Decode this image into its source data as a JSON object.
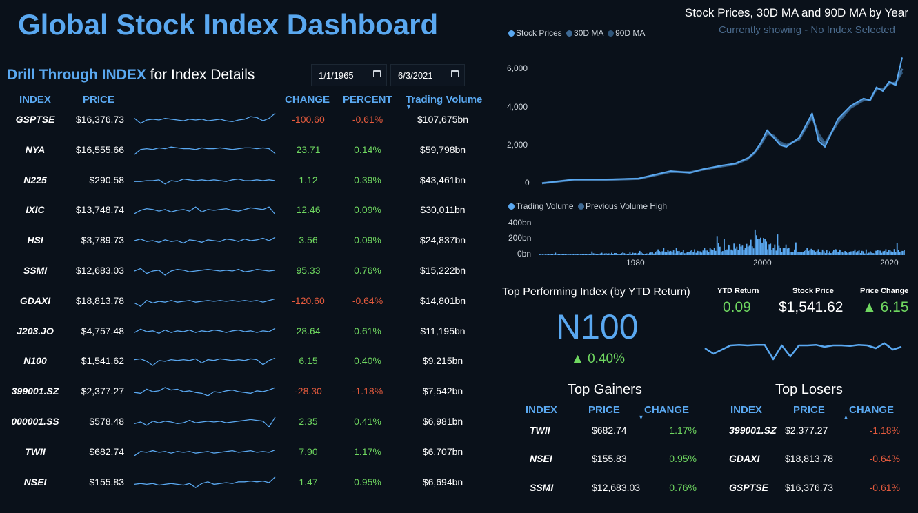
{
  "page": {
    "title": "Global Stock Index Dashboard"
  },
  "drill": {
    "highlight": "Drill Through INDEX",
    "rest": " for Index Details"
  },
  "dates": {
    "start": "1/1/1965",
    "end": "6/3/2021"
  },
  "table": {
    "headers": {
      "index": "INDEX",
      "price": "PRICE",
      "change": "CHANGE",
      "percent": "PERCENT",
      "volume": "Trading Volume"
    },
    "rows": [
      {
        "index": "GSPTSE",
        "price": "$16,376.73",
        "change": "-100.60",
        "percent": "-0.61%",
        "volume": "$107,675bn",
        "dir": "neg",
        "spark": [
          0.4,
          0.7,
          0.5,
          0.45,
          0.5,
          0.4,
          0.45,
          0.5,
          0.55,
          0.45,
          0.5,
          0.45,
          0.55,
          0.5,
          0.45,
          0.55,
          0.6,
          0.5,
          0.45,
          0.3,
          0.35,
          0.55,
          0.4,
          0.1
        ]
      },
      {
        "index": "NYA",
        "price": "$16,555.66",
        "change": "23.71",
        "percent": "0.14%",
        "volume": "$59,798bn",
        "dir": "pos",
        "spark": [
          0.75,
          0.45,
          0.4,
          0.45,
          0.35,
          0.4,
          0.3,
          0.35,
          0.4,
          0.4,
          0.45,
          0.35,
          0.4,
          0.4,
          0.35,
          0.4,
          0.45,
          0.4,
          0.35,
          0.35,
          0.4,
          0.35,
          0.4,
          0.7
        ]
      },
      {
        "index": "N225",
        "price": "$290.58",
        "change": "1.12",
        "percent": "0.39%",
        "volume": "$43,461bn",
        "dir": "pos",
        "spark": [
          0.55,
          0.55,
          0.5,
          0.5,
          0.45,
          0.7,
          0.5,
          0.55,
          0.4,
          0.45,
          0.5,
          0.45,
          0.5,
          0.45,
          0.5,
          0.55,
          0.45,
          0.4,
          0.5,
          0.5,
          0.45,
          0.5,
          0.45,
          0.5
        ]
      },
      {
        "index": "IXIC",
        "price": "$13,748.74",
        "change": "12.46",
        "percent": "0.09%",
        "volume": "$30,011bn",
        "dir": "pos",
        "spark": [
          0.7,
          0.5,
          0.4,
          0.45,
          0.55,
          0.45,
          0.6,
          0.5,
          0.45,
          0.55,
          0.3,
          0.6,
          0.45,
          0.5,
          0.45,
          0.4,
          0.5,
          0.55,
          0.45,
          0.35,
          0.4,
          0.45,
          0.3,
          0.75
        ]
      },
      {
        "index": "HSI",
        "price": "$3,789.73",
        "change": "3.56",
        "percent": "0.09%",
        "volume": "$24,837bn",
        "dir": "pos",
        "spark": [
          0.5,
          0.4,
          0.55,
          0.5,
          0.6,
          0.45,
          0.55,
          0.5,
          0.65,
          0.45,
          0.5,
          0.6,
          0.45,
          0.5,
          0.55,
          0.4,
          0.45,
          0.55,
          0.4,
          0.5,
          0.45,
          0.35,
          0.5,
          0.3
        ]
      },
      {
        "index": "SSMI",
        "price": "$12,683.03",
        "change": "95.33",
        "percent": "0.76%",
        "volume": "$15,222bn",
        "dir": "pos",
        "spark": [
          0.5,
          0.35,
          0.65,
          0.5,
          0.45,
          0.75,
          0.5,
          0.4,
          0.45,
          0.55,
          0.5,
          0.45,
          0.4,
          0.45,
          0.5,
          0.45,
          0.5,
          0.4,
          0.55,
          0.5,
          0.4,
          0.45,
          0.5,
          0.45
        ]
      },
      {
        "index": "GDAXI",
        "price": "$18,813.78",
        "change": "-120.60",
        "percent": "-0.64%",
        "volume": "$14,801bn",
        "dir": "neg",
        "spark": [
          0.6,
          0.8,
          0.45,
          0.6,
          0.5,
          0.55,
          0.45,
          0.55,
          0.5,
          0.45,
          0.55,
          0.5,
          0.45,
          0.5,
          0.45,
          0.5,
          0.45,
          0.5,
          0.45,
          0.5,
          0.45,
          0.55,
          0.45,
          0.35
        ]
      },
      {
        "index": "J203.JO",
        "price": "$4,757.48",
        "change": "28.64",
        "percent": "0.61%",
        "volume": "$11,195bn",
        "dir": "pos",
        "spark": [
          0.55,
          0.35,
          0.5,
          0.45,
          0.6,
          0.4,
          0.55,
          0.45,
          0.5,
          0.4,
          0.55,
          0.45,
          0.5,
          0.4,
          0.45,
          0.55,
          0.45,
          0.4,
          0.5,
          0.45,
          0.55,
          0.45,
          0.5,
          0.3
        ]
      },
      {
        "index": "N100",
        "price": "$1,541.62",
        "change": "6.15",
        "percent": "0.40%",
        "volume": "$9,215bn",
        "dir": "pos",
        "spark": [
          0.4,
          0.35,
          0.5,
          0.75,
          0.45,
          0.5,
          0.4,
          0.45,
          0.4,
          0.45,
          0.35,
          0.6,
          0.4,
          0.45,
          0.35,
          0.4,
          0.45,
          0.4,
          0.45,
          0.35,
          0.4,
          0.7,
          0.45,
          0.3
        ]
      },
      {
        "index": "399001.SZ",
        "price": "$2,377.27",
        "change": "-28.30",
        "percent": "-1.18%",
        "volume": "$7,542bn",
        "dir": "neg",
        "spark": [
          0.55,
          0.6,
          0.35,
          0.5,
          0.45,
          0.25,
          0.4,
          0.35,
          0.5,
          0.45,
          0.55,
          0.6,
          0.75,
          0.5,
          0.55,
          0.45,
          0.4,
          0.5,
          0.55,
          0.6,
          0.45,
          0.5,
          0.4,
          0.25
        ]
      },
      {
        "index": "000001.SS",
        "price": "$578.48",
        "change": "2.35",
        "percent": "0.41%",
        "volume": "$6,981bn",
        "dir": "pos",
        "spark": [
          0.6,
          0.5,
          0.7,
          0.45,
          0.55,
          0.45,
          0.5,
          0.6,
          0.55,
          0.4,
          0.55,
          0.5,
          0.45,
          0.5,
          0.45,
          0.55,
          0.5,
          0.45,
          0.4,
          0.35,
          0.4,
          0.45,
          0.8,
          0.2
        ]
      },
      {
        "index": "TWII",
        "price": "$682.74",
        "change": "7.90",
        "percent": "1.17%",
        "volume": "$6,707bn",
        "dir": "pos",
        "spark": [
          0.7,
          0.45,
          0.5,
          0.4,
          0.5,
          0.45,
          0.55,
          0.45,
          0.5,
          0.45,
          0.55,
          0.5,
          0.45,
          0.55,
          0.5,
          0.45,
          0.4,
          0.5,
          0.45,
          0.4,
          0.5,
          0.45,
          0.5,
          0.35
        ]
      },
      {
        "index": "NSEI",
        "price": "$155.83",
        "change": "1.47",
        "percent": "0.95%",
        "volume": "$6,694bn",
        "dir": "pos",
        "spark": [
          0.6,
          0.55,
          0.6,
          0.55,
          0.65,
          0.6,
          0.55,
          0.6,
          0.65,
          0.55,
          0.8,
          0.55,
          0.45,
          0.6,
          0.55,
          0.5,
          0.55,
          0.45,
          0.45,
          0.4,
          0.45,
          0.4,
          0.5,
          0.15
        ]
      }
    ]
  },
  "price_chart": {
    "title": "Stock Prices, 30D MA and 90D MA by Year",
    "subtitle": "Currently showing - No Index Selected",
    "legend": [
      "Stock Prices",
      "30D MA",
      "90D MA"
    ],
    "colors": [
      "#5aa8f0",
      "#3e6a95",
      "#2f5579"
    ],
    "y_ticks": [
      "6,000",
      "4,000",
      "2,000",
      "0"
    ]
  },
  "volume_chart": {
    "legend": [
      "Trading Volume",
      "Previous Volume High"
    ],
    "colors": [
      "#5aa8f0",
      "#3e6a95"
    ],
    "y_ticks": [
      "400bn",
      "200bn",
      "0bn"
    ],
    "x_ticks": [
      "1980",
      "2000",
      "2020"
    ]
  },
  "chart_data": [
    {
      "type": "line",
      "title": "Stock Prices, 30D MA and 90D MA by Year",
      "xlabel": "",
      "ylabel": "",
      "ylim": [
        0,
        7000
      ],
      "xlim": [
        1965,
        2021
      ],
      "x": [
        1965,
        1970,
        1975,
        1980,
        1985,
        1988,
        1990,
        1993,
        1995,
        1997,
        1998,
        1999,
        2000,
        2001,
        2002,
        2003,
        2005,
        2007,
        2008,
        2009,
        2011,
        2013,
        2015,
        2016,
        2017,
        2018,
        2019,
        2020,
        2021
      ],
      "series": [
        {
          "name": "Stock Prices",
          "values": [
            50,
            250,
            250,
            300,
            700,
            600,
            800,
            1000,
            1100,
            1400,
            1700,
            2200,
            2900,
            2500,
            2100,
            2000,
            2500,
            3800,
            2300,
            2000,
            3500,
            4200,
            4600,
            4500,
            5200,
            5000,
            5500,
            5300,
            6800
          ]
        },
        {
          "name": "30D MA",
          "values": [
            50,
            240,
            240,
            290,
            680,
            620,
            790,
            980,
            1080,
            1380,
            1680,
            2150,
            2800,
            2550,
            2150,
            2050,
            2450,
            3700,
            2500,
            2100,
            3400,
            4150,
            4550,
            4500,
            5150,
            5050,
            5450,
            5400,
            6200
          ]
        },
        {
          "name": "90D MA",
          "values": [
            50,
            230,
            230,
            280,
            650,
            640,
            770,
            960,
            1060,
            1350,
            1650,
            2100,
            2700,
            2600,
            2250,
            2100,
            2400,
            3600,
            2700,
            2200,
            3300,
            4100,
            4500,
            4500,
            5100,
            5100,
            5400,
            5450,
            6000
          ]
        }
      ]
    },
    {
      "type": "area",
      "title": "",
      "ylim": [
        0,
        400
      ],
      "xlim": [
        1965,
        2021
      ],
      "series": [
        {
          "name": "Trading Volume",
          "values": [
            10,
            12,
            15,
            14,
            20,
            25,
            30,
            35,
            40,
            45,
            55,
            60,
            70,
            90,
            110,
            130,
            150,
            300,
            120,
            100,
            90,
            80,
            70,
            65,
            60,
            55,
            60,
            70,
            65
          ]
        },
        {
          "name": "Previous Volume High",
          "values": []
        }
      ]
    },
    {
      "type": "line",
      "title": "",
      "values": [
        0.5,
        0.3,
        0.45,
        0.6,
        0.62,
        0.6,
        0.62,
        0.62,
        0.1,
        0.6,
        0.2,
        0.6,
        0.6,
        0.62,
        0.55,
        0.6,
        0.6,
        0.58,
        0.62,
        0.6,
        0.5,
        0.68,
        0.45,
        0.55
      ]
    }
  ],
  "top_performer": {
    "label": "Top Performing Index (by YTD Return)",
    "name": "N100",
    "pct": "▲ 0.40%",
    "ytd_label": "YTD Return",
    "ytd_value": "0.09",
    "price_label": "Stock Price",
    "price_value": "$1,541.62",
    "change_label": "Price Change",
    "change_value": "▲ 6.15"
  },
  "gainers": {
    "title": "Top Gainers",
    "headers": {
      "index": "INDEX",
      "price": "PRICE",
      "change": "CHANGE"
    },
    "rows": [
      {
        "index": "TWII",
        "price": "$682.74",
        "change": "1.17%"
      },
      {
        "index": "NSEI",
        "price": "$155.83",
        "change": "0.95%"
      },
      {
        "index": "SSMI",
        "price": "$12,683.03",
        "change": "0.76%"
      }
    ]
  },
  "losers": {
    "title": "Top Losers",
    "headers": {
      "index": "INDEX",
      "price": "PRICE",
      "change": "CHANGE"
    },
    "rows": [
      {
        "index": "399001.SZ",
        "price": "$2,377.27",
        "change": "-1.18%"
      },
      {
        "index": "GDAXI",
        "price": "$18,813.78",
        "change": "-0.64%"
      },
      {
        "index": "GSPTSE",
        "price": "$16,376.73",
        "change": "-0.61%"
      }
    ]
  }
}
